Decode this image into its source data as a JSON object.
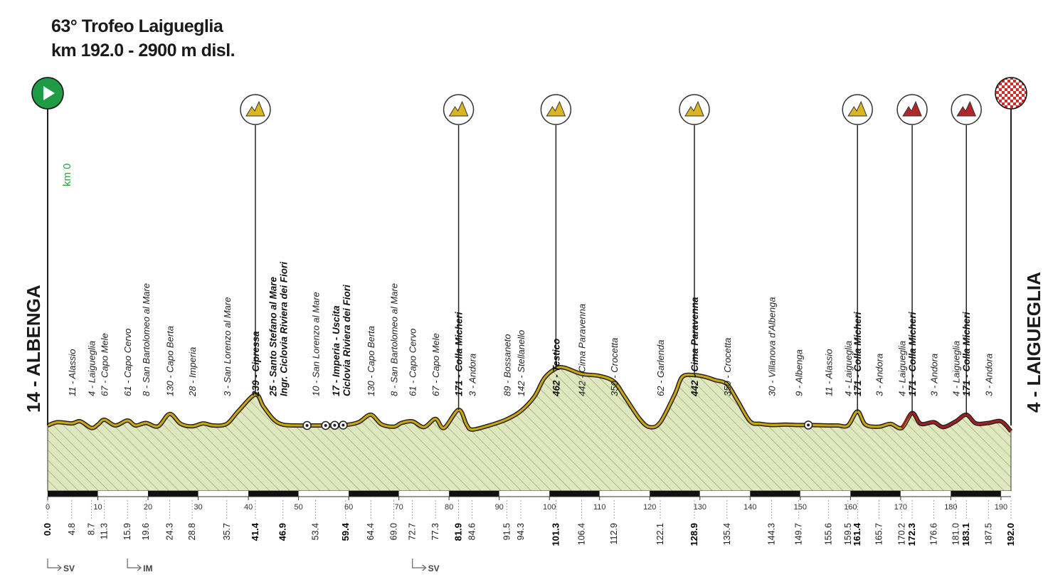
{
  "title": {
    "line1": "63° Trofeo Laigueglia",
    "line2": "km 192.0 - 2900 m disl."
  },
  "chart_data": {
    "type": "area",
    "xlim": [
      0,
      192
    ],
    "ylim": [
      0,
      480
    ],
    "x_ticks": [
      0,
      10,
      20,
      30,
      40,
      50,
      60,
      70,
      80,
      90,
      100,
      110,
      120,
      130,
      140,
      150,
      160,
      170,
      180,
      190
    ],
    "start_label": "14 - ALBENGA",
    "finish_label": "4 - LAIGUEGLIA",
    "km0_label": "km 0",
    "profile_x": [
      0,
      2,
      4.8,
      6.5,
      8.7,
      10,
      11.3,
      13.5,
      15.9,
      17.5,
      19.6,
      22,
      24.3,
      26.5,
      28.8,
      31,
      33,
      35.7,
      38,
      41.4,
      43,
      45,
      46.9,
      50,
      53.4,
      56,
      59.4,
      62,
      64.4,
      66.5,
      69,
      70.5,
      72.7,
      75,
      77.3,
      79,
      81.9,
      83.5,
      84.6,
      88,
      91.5,
      94.3,
      97,
      99,
      101.3,
      103,
      106.4,
      110,
      112.9,
      115,
      118,
      120,
      122.1,
      125,
      126.5,
      128.9,
      131,
      133,
      135.4,
      137.5,
      140,
      142,
      144.3,
      147,
      149.7,
      152,
      155.6,
      157.5,
      159.5,
      161.4,
      163,
      165.7,
      168,
      170.2,
      172.3,
      174,
      176.6,
      178.5,
      181,
      183.1,
      185,
      187.5,
      190,
      192
    ],
    "profile_y": [
      0,
      8,
      5,
      10,
      -6,
      2,
      14,
      0,
      12,
      0,
      6,
      -2,
      28,
      4,
      -2,
      5,
      0,
      4,
      35,
      75,
      46,
      15,
      2,
      0,
      0,
      0,
      1,
      8,
      26,
      3,
      -3,
      6,
      10,
      -4,
      16,
      -6,
      38,
      2,
      -10,
      0,
      15,
      35,
      70,
      115,
      138,
      140,
      125,
      120,
      106,
      70,
      16,
      -4,
      8,
      76,
      118,
      122,
      118,
      110,
      100,
      60,
      10,
      4,
      1,
      2,
      1,
      1,
      0,
      0,
      0,
      34,
      2,
      -3,
      4,
      -6,
      30,
      4,
      8,
      -4,
      10,
      26,
      5,
      6,
      10,
      -14
    ]
  },
  "markers": {
    "start": "start-flag-icon",
    "finish": "finish-flag-icon",
    "climbs_gpm": [
      {
        "km": 41.4,
        "cat": "yellow"
      },
      {
        "km": 81.9,
        "cat": "yellow"
      },
      {
        "km": 101.3,
        "cat": "yellow"
      },
      {
        "km": 128.9,
        "cat": "yellow"
      },
      {
        "km": 161.4,
        "cat": "yellow"
      },
      {
        "km": 172.3,
        "cat": "red"
      },
      {
        "km": 183.1,
        "cat": "red"
      }
    ],
    "roundabouts_km": [
      51.7,
      55.4,
      57.2,
      58.9,
      151.6
    ]
  },
  "waypoints": [
    {
      "km": 4.8,
      "name": "11 - Alassio",
      "bold": false
    },
    {
      "km": 8.7,
      "name": "4 - Laigueglia",
      "bold": false
    },
    {
      "km": 11.3,
      "name": "67 - Capo Mele",
      "bold": false
    },
    {
      "km": 15.9,
      "name": "61 - Capo Cervo",
      "bold": false
    },
    {
      "km": 19.6,
      "name": "8 - San Bartolomeo al Mare",
      "bold": false
    },
    {
      "km": 24.3,
      "name": "130 - Capo Berta",
      "bold": false
    },
    {
      "km": 28.8,
      "name": "28 - Imperia",
      "bold": false
    },
    {
      "km": 35.7,
      "name": "3 - San Lorenzo al Mare",
      "bold": false
    },
    {
      "km": 41.4,
      "name": "239 - Cipressa",
      "bold": true
    },
    {
      "km": 46.9,
      "name": "25 - Santo Stefano al Mare",
      "name2": "Ingr. Ciclovia Riviera dei Fiori",
      "bold": true
    },
    {
      "km": 53.4,
      "name": "10 - San Lorenzo al Mare",
      "bold": false
    },
    {
      "km": 59.4,
      "name": "17 - Imperia - Uscita",
      "name2": "Ciclovia Riviera dei Fiori",
      "bold": true
    },
    {
      "km": 64.4,
      "name": "130 - Capo Berta",
      "bold": false
    },
    {
      "km": 69.0,
      "name": "8 - San Bartolomeo al Mare",
      "bold": false
    },
    {
      "km": 72.7,
      "name": "61 - Capo Cervo",
      "bold": false
    },
    {
      "km": 77.3,
      "name": "67 - Capo Mele",
      "bold": false
    },
    {
      "km": 81.9,
      "name": "171 - Colla Micheri",
      "bold": true
    },
    {
      "km": 84.6,
      "name": "3 - Andora",
      "bold": false
    },
    {
      "km": 91.5,
      "name": "89 - Bossaneto",
      "bold": false
    },
    {
      "km": 94.3,
      "name": "142 - Stellanello",
      "bold": false
    },
    {
      "km": 101.3,
      "name": "462 - Testico",
      "bold": true
    },
    {
      "km": 106.4,
      "name": "442 - Cima Paravenna",
      "bold": false
    },
    {
      "km": 112.9,
      "name": "350 - Crocetta",
      "bold": false
    },
    {
      "km": 122.1,
      "name": "62 - Garlenda",
      "bold": false
    },
    {
      "km": 128.9,
      "name": "442 - Cima Paravenna",
      "bold": true
    },
    {
      "km": 135.4,
      "name": "350 - Crocetta",
      "bold": false
    },
    {
      "km": 144.3,
      "name": "30 - Villanova d'Albenga",
      "bold": false
    },
    {
      "km": 149.7,
      "name": "9 - Albenga",
      "bold": false
    },
    {
      "km": 155.6,
      "name": "11 - Alassio",
      "bold": false
    },
    {
      "km": 159.5,
      "name": "4 - Laigueglia",
      "bold": false
    },
    {
      "km": 161.4,
      "name": "171 - Colla Micheri",
      "bold": true
    },
    {
      "km": 165.7,
      "name": "3 - Andora",
      "bold": false
    },
    {
      "km": 170.2,
      "name": "4 - Laigueglia",
      "bold": false
    },
    {
      "km": 172.3,
      "name": "171 - Colla Micheri",
      "bold": true
    },
    {
      "km": 176.6,
      "name": "3 - Andora",
      "bold": false
    },
    {
      "km": 181.0,
      "name": "4 - Laigueglia",
      "bold": false
    },
    {
      "km": 183.1,
      "name": "171 - Colla Micheri",
      "bold": true
    },
    {
      "km": 187.5,
      "name": "3 - Andora",
      "bold": false
    }
  ],
  "km_labels": [
    {
      "km": 0.0,
      "label": "0.0",
      "bold": true
    },
    {
      "km": 4.8,
      "label": "4.8",
      "bold": false
    },
    {
      "km": 8.7,
      "label": "8.7",
      "bold": false
    },
    {
      "km": 11.3,
      "label": "11.3",
      "bold": false
    },
    {
      "km": 15.9,
      "label": "15.9",
      "bold": false
    },
    {
      "km": 19.6,
      "label": "19.6",
      "bold": false
    },
    {
      "km": 24.3,
      "label": "24.3",
      "bold": false
    },
    {
      "km": 28.8,
      "label": "28.8",
      "bold": false
    },
    {
      "km": 35.7,
      "label": "35.7",
      "bold": false
    },
    {
      "km": 41.4,
      "label": "41.4",
      "bold": true
    },
    {
      "km": 46.9,
      "label": "46.9",
      "bold": true
    },
    {
      "km": 53.4,
      "label": "53.4",
      "bold": false
    },
    {
      "km": 59.4,
      "label": "59.4",
      "bold": true
    },
    {
      "km": 64.4,
      "label": "64.4",
      "bold": false
    },
    {
      "km": 69.0,
      "label": "69.0",
      "bold": false
    },
    {
      "km": 72.7,
      "label": "72.7",
      "bold": false
    },
    {
      "km": 77.3,
      "label": "77.3",
      "bold": false
    },
    {
      "km": 81.9,
      "label": "81.9",
      "bold": true
    },
    {
      "km": 84.6,
      "label": "84.6",
      "bold": false
    },
    {
      "km": 91.5,
      "label": "91.5",
      "bold": false
    },
    {
      "km": 94.3,
      "label": "94.3",
      "bold": false
    },
    {
      "km": 101.3,
      "label": "101.3",
      "bold": true
    },
    {
      "km": 106.4,
      "label": "106.4",
      "bold": false
    },
    {
      "km": 112.9,
      "label": "112.9",
      "bold": false
    },
    {
      "km": 122.1,
      "label": "122.1",
      "bold": false
    },
    {
      "km": 128.9,
      "label": "128.9",
      "bold": true
    },
    {
      "km": 135.4,
      "label": "135.4",
      "bold": false
    },
    {
      "km": 144.3,
      "label": "144.3",
      "bold": false
    },
    {
      "km": 149.7,
      "label": "149.7",
      "bold": false
    },
    {
      "km": 155.6,
      "label": "155.6",
      "bold": false
    },
    {
      "km": 159.5,
      "label": "159.5",
      "bold": false
    },
    {
      "km": 161.4,
      "label": "161.4",
      "bold": true
    },
    {
      "km": 165.7,
      "label": "165.7",
      "bold": false
    },
    {
      "km": 170.2,
      "label": "170.2",
      "bold": false
    },
    {
      "km": 172.3,
      "label": "172.3",
      "bold": true
    },
    {
      "km": 176.6,
      "label": "176.6",
      "bold": false
    },
    {
      "km": 181.0,
      "label": "181.0",
      "bold": false
    },
    {
      "km": 183.1,
      "label": "183.1",
      "bold": true
    },
    {
      "km": 187.5,
      "label": "187.5",
      "bold": false
    },
    {
      "km": 192.0,
      "label": "192.0",
      "bold": true
    }
  ],
  "exits": [
    {
      "km": 0.0,
      "label": "SV"
    },
    {
      "km": 15.9,
      "label": "IM"
    },
    {
      "km": 72.7,
      "label": "SV"
    }
  ],
  "colors": {
    "profile_line": "#c9a415",
    "profile_line_red": "#a01d22",
    "profile_fill": "#dfe7bf",
    "hatch": "#8a9a60",
    "start_green": "#1f9a45",
    "gpm_yellow": "#d9b522",
    "gpm_red": "#b0262a",
    "km0_green": "#2aa33a"
  }
}
